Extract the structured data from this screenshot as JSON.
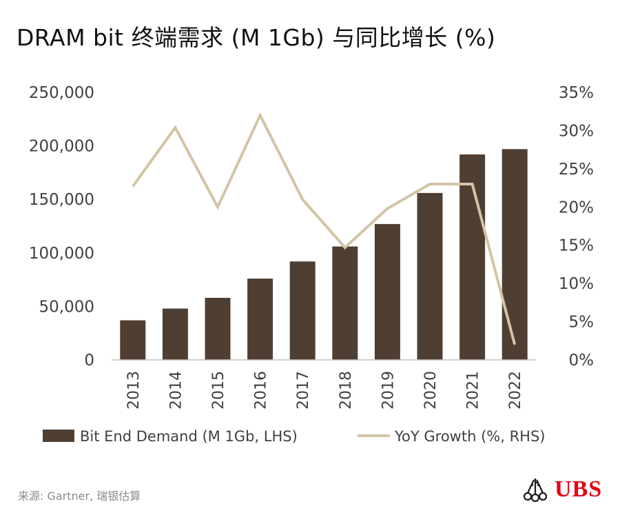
{
  "title": "DRAM bit 终端需求 (M 1Gb) 与同比增长 (%)",
  "source": "来源: Gartner, 瑞银估算",
  "logo_text": "UBS",
  "colors": {
    "bar": "#4f3f33",
    "line": "#d3c4a6",
    "axis": "#bfbfbf",
    "logo": "#e30613"
  },
  "chart_data": {
    "type": "bar",
    "categories": [
      "2013",
      "2014",
      "2015",
      "2016",
      "2017",
      "2018",
      "2019",
      "2020",
      "2021",
      "2022"
    ],
    "series": [
      {
        "name": "Bit End Demand (M 1Gb, LHS)",
        "type": "bar",
        "axis": "left",
        "values": [
          37000,
          48000,
          58000,
          76000,
          92000,
          106000,
          127000,
          156000,
          192000,
          197000
        ]
      },
      {
        "name": "YoY Growth (%, RHS)",
        "type": "line",
        "axis": "right",
        "values": [
          22.7,
          30.4,
          20.0,
          32.0,
          21.0,
          14.7,
          19.8,
          23.0,
          23.0,
          2.0
        ]
      }
    ],
    "y_left": {
      "ylim": [
        0,
        250000
      ],
      "ticks": [
        "0",
        "50,000",
        "100,000",
        "150,000",
        "200,000",
        "250,000"
      ]
    },
    "y_right": {
      "ylim": [
        0,
        35
      ],
      "ticks": [
        "0%",
        "5%",
        "10%",
        "15%",
        "20%",
        "25%",
        "30%",
        "35%"
      ]
    },
    "legend_position": "bottom",
    "grid": false
  }
}
